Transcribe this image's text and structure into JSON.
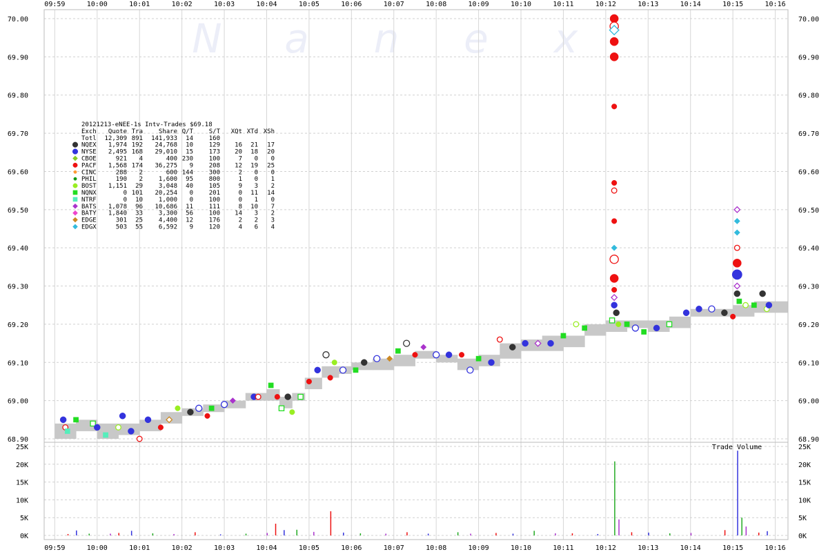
{
  "chart_data": {
    "type": "scatter",
    "watermark": [
      "N",
      "a",
      "n",
      "e",
      "x"
    ],
    "x_ticks": [
      "09:59",
      "10:00",
      "10:01",
      "10:02",
      "10:03",
      "10:04",
      "10:05",
      "10:06",
      "10:07",
      "10:08",
      "10:09",
      "10:10",
      "10:11",
      "10:12",
      "10:13",
      "10:14",
      "10:15",
      "10:16"
    ],
    "price_axis": {
      "ylim": [
        68.9,
        70.0
      ],
      "ticks": [
        "70.00",
        "69.90",
        "69.80",
        "69.70",
        "69.60",
        "69.50",
        "69.40",
        "69.30",
        "69.20",
        "69.10",
        "69.00",
        "68.90"
      ]
    },
    "volume_axis": {
      "label": "Trade Volume",
      "ylim": [
        0,
        25000
      ],
      "ticks": [
        "25K",
        "20K",
        "15K",
        "10K",
        "5K",
        "0K"
      ]
    },
    "legend": {
      "title": "20121213-eNEE-1s Intv-Trades $69.18",
      "columns": [
        "Exch",
        "Quote",
        "Tra",
        "Share",
        "Q/T",
        "S/T",
        "XQt",
        "XTd",
        "XSh"
      ],
      "total": {
        "exch": "Totl",
        "quote": "12,309",
        "tra": "891",
        "share": "141,933",
        "qt": "14",
        "st": "160",
        "xqt": "",
        "xtd": "",
        "xsh": ""
      },
      "rows": [
        {
          "exch": "NQEX",
          "quote": "1,974",
          "tra": "192",
          "share": "24,768",
          "qt": "10",
          "st": "129",
          "xqt": "16",
          "xtd": "21",
          "xsh": "17",
          "color": "#333333",
          "shape": "circle-big"
        },
        {
          "exch": "NYSE",
          "quote": "2,495",
          "tra": "168",
          "share": "29,010",
          "qt": "15",
          "st": "173",
          "xqt": "20",
          "xtd": "18",
          "xsh": "20",
          "color": "#3333dd",
          "shape": "circle-big"
        },
        {
          "exch": "CBOE",
          "quote": "921",
          "tra": "4",
          "share": "400",
          "qt": "230",
          "st": "100",
          "xqt": "7",
          "xtd": "0",
          "xsh": "0",
          "color": "#88cc22",
          "shape": "diamond"
        },
        {
          "exch": "PACF",
          "quote": "1,568",
          "tra": "174",
          "share": "36,275",
          "qt": "9",
          "st": "208",
          "xqt": "12",
          "xtd": "19",
          "xsh": "25",
          "color": "#ee1111",
          "shape": "circle"
        },
        {
          "exch": "CINC",
          "quote": "288",
          "tra": "2",
          "share": "600",
          "qt": "144",
          "st": "300",
          "xqt": "2",
          "xtd": "0",
          "xsh": "0",
          "color": "#ff9933",
          "shape": "circle-small"
        },
        {
          "exch": "PHIL",
          "quote": "190",
          "tra": "2",
          "share": "1,600",
          "qt": "95",
          "st": "800",
          "xqt": "1",
          "xtd": "0",
          "xsh": "1",
          "color": "#119911",
          "shape": "circle-small"
        },
        {
          "exch": "BOST",
          "quote": "1,151",
          "tra": "29",
          "share": "3,048",
          "qt": "40",
          "st": "105",
          "xqt": "9",
          "xtd": "3",
          "xsh": "2",
          "color": "#99ee22",
          "shape": "circle"
        },
        {
          "exch": "NQNX",
          "quote": "0",
          "tra": "101",
          "share": "20,254",
          "qt": "0",
          "st": "201",
          "xqt": "0",
          "xtd": "11",
          "xsh": "14",
          "color": "#22dd22",
          "shape": "square"
        },
        {
          "exch": "NTRF",
          "quote": "0",
          "tra": "10",
          "share": "1,000",
          "qt": "0",
          "st": "100",
          "xqt": "0",
          "xtd": "1",
          "xsh": "0",
          "color": "#55eebb",
          "shape": "square"
        },
        {
          "exch": "BATS",
          "quote": "1,078",
          "tra": "96",
          "share": "10,686",
          "qt": "11",
          "st": "111",
          "xqt": "8",
          "xtd": "10",
          "xsh": "7",
          "color": "#aa33cc",
          "shape": "diamond"
        },
        {
          "exch": "BATY",
          "quote": "1,840",
          "tra": "33",
          "share": "3,300",
          "qt": "56",
          "st": "100",
          "xqt": "14",
          "xtd": "3",
          "xsh": "2",
          "color": "#ee44cc",
          "shape": "diamond"
        },
        {
          "exch": "EDGE",
          "quote": "301",
          "tra": "25",
          "share": "4,400",
          "qt": "12",
          "st": "176",
          "xqt": "2",
          "xtd": "2",
          "xsh": "3",
          "color": "#cc8822",
          "shape": "diamond"
        },
        {
          "exch": "EDGX",
          "quote": "503",
          "tra": "55",
          "share": "6,592",
          "qt": "9",
          "st": "120",
          "xqt": "4",
          "xtd": "6",
          "xsh": "4",
          "color": "#33bbdd",
          "shape": "diamond"
        }
      ]
    },
    "nbbo_band": [
      {
        "t": 59.0,
        "lo": 68.9,
        "hi": 68.94
      },
      {
        "t": 59.5,
        "lo": 68.92,
        "hi": 68.95
      },
      {
        "t": 60.0,
        "lo": 68.9,
        "hi": 68.94
      },
      {
        "t": 60.5,
        "lo": 68.91,
        "hi": 68.94
      },
      {
        "t": 61.0,
        "lo": 68.92,
        "hi": 68.95
      },
      {
        "t": 61.5,
        "lo": 68.94,
        "hi": 68.97
      },
      {
        "t": 62.0,
        "lo": 68.96,
        "hi": 68.98
      },
      {
        "t": 62.5,
        "lo": 68.97,
        "hi": 68.99
      },
      {
        "t": 63.0,
        "lo": 68.98,
        "hi": 69.0
      },
      {
        "t": 63.5,
        "lo": 69.0,
        "hi": 69.02
      },
      {
        "t": 64.0,
        "lo": 69.0,
        "hi": 69.03
      },
      {
        "t": 64.3,
        "lo": 68.98,
        "hi": 69.01
      },
      {
        "t": 64.6,
        "lo": 69.0,
        "hi": 69.02
      },
      {
        "t": 64.9,
        "lo": 69.03,
        "hi": 69.06
      },
      {
        "t": 65.3,
        "lo": 69.06,
        "hi": 69.09
      },
      {
        "t": 65.7,
        "lo": 69.07,
        "hi": 69.09
      },
      {
        "t": 66.0,
        "lo": 69.08,
        "hi": 69.1
      },
      {
        "t": 66.5,
        "lo": 69.08,
        "hi": 69.11
      },
      {
        "t": 67.0,
        "lo": 69.09,
        "hi": 69.12
      },
      {
        "t": 67.5,
        "lo": 69.11,
        "hi": 69.13
      },
      {
        "t": 68.0,
        "lo": 69.1,
        "hi": 69.12
      },
      {
        "t": 68.5,
        "lo": 69.08,
        "hi": 69.11
      },
      {
        "t": 69.0,
        "lo": 69.09,
        "hi": 69.12
      },
      {
        "t": 69.5,
        "lo": 69.11,
        "hi": 69.15
      },
      {
        "t": 70.0,
        "lo": 69.13,
        "hi": 69.16
      },
      {
        "t": 70.5,
        "lo": 69.13,
        "hi": 69.17
      },
      {
        "t": 71.0,
        "lo": 69.14,
        "hi": 69.17
      },
      {
        "t": 71.5,
        "lo": 69.17,
        "hi": 69.2
      },
      {
        "t": 72.0,
        "lo": 69.18,
        "hi": 69.21
      },
      {
        "t": 72.5,
        "lo": 69.19,
        "hi": 69.21
      },
      {
        "t": 73.0,
        "lo": 69.18,
        "hi": 69.21
      },
      {
        "t": 73.5,
        "lo": 69.19,
        "hi": 69.22
      },
      {
        "t": 74.0,
        "lo": 69.22,
        "hi": 69.24
      },
      {
        "t": 74.5,
        "lo": 69.22,
        "hi": 69.24
      },
      {
        "t": 75.0,
        "lo": 69.22,
        "hi": 69.25
      },
      {
        "t": 75.5,
        "lo": 69.23,
        "hi": 69.26
      },
      {
        "t": 75.9,
        "lo": 69.23,
        "hi": 69.26
      }
    ],
    "trades": [
      {
        "t": 59.2,
        "p": 68.95,
        "e": "NYSE"
      },
      {
        "t": 59.25,
        "p": 68.93,
        "e": "PACF"
      },
      {
        "t": 59.3,
        "p": 68.92,
        "e": "NTRF"
      },
      {
        "t": 59.5,
        "p": 68.95,
        "e": "NQNX"
      },
      {
        "t": 59.9,
        "p": 68.94,
        "e": "NQNX"
      },
      {
        "t": 60.0,
        "p": 68.93,
        "e": "NYSE"
      },
      {
        "t": 60.2,
        "p": 68.91,
        "e": "NTRF"
      },
      {
        "t": 60.5,
        "p": 68.93,
        "e": "BOST"
      },
      {
        "t": 60.6,
        "p": 68.96,
        "e": "NYSE"
      },
      {
        "t": 60.8,
        "p": 68.92,
        "e": "NYSE"
      },
      {
        "t": 61.0,
        "p": 68.9,
        "e": "PACF"
      },
      {
        "t": 61.2,
        "p": 68.95,
        "e": "NYSE"
      },
      {
        "t": 61.5,
        "p": 68.93,
        "e": "PACF"
      },
      {
        "t": 61.7,
        "p": 68.95,
        "e": "EDGE"
      },
      {
        "t": 61.9,
        "p": 68.98,
        "e": "BOST"
      },
      {
        "t": 62.2,
        "p": 68.97,
        "e": "NQEX"
      },
      {
        "t": 62.4,
        "p": 68.98,
        "e": "NYSE"
      },
      {
        "t": 62.6,
        "p": 68.96,
        "e": "PACF"
      },
      {
        "t": 62.7,
        "p": 68.98,
        "e": "NQNX"
      },
      {
        "t": 63.0,
        "p": 68.99,
        "e": "NYSE"
      },
      {
        "t": 63.2,
        "p": 69.0,
        "e": "BATS"
      },
      {
        "t": 63.7,
        "p": 69.01,
        "e": "NYSE"
      },
      {
        "t": 63.8,
        "p": 69.01,
        "e": "PACF"
      },
      {
        "t": 64.1,
        "p": 69.04,
        "e": "NQNX"
      },
      {
        "t": 64.25,
        "p": 69.01,
        "e": "PACF"
      },
      {
        "t": 64.35,
        "p": 68.98,
        "e": "NQNX"
      },
      {
        "t": 64.5,
        "p": 69.01,
        "e": "NQEX"
      },
      {
        "t": 64.6,
        "p": 68.97,
        "e": "BOST"
      },
      {
        "t": 64.8,
        "p": 69.01,
        "e": "NQNX"
      },
      {
        "t": 65.0,
        "p": 69.05,
        "e": "PACF"
      },
      {
        "t": 65.2,
        "p": 69.08,
        "e": "NYSE"
      },
      {
        "t": 65.4,
        "p": 69.12,
        "e": "NQEX"
      },
      {
        "t": 65.5,
        "p": 69.06,
        "e": "PACF"
      },
      {
        "t": 65.6,
        "p": 69.1,
        "e": "BOST"
      },
      {
        "t": 65.8,
        "p": 69.08,
        "e": "NYSE"
      },
      {
        "t": 66.1,
        "p": 69.08,
        "e": "NQNX"
      },
      {
        "t": 66.3,
        "p": 69.1,
        "e": "NQEX"
      },
      {
        "t": 66.6,
        "p": 69.11,
        "e": "NYSE"
      },
      {
        "t": 66.9,
        "p": 69.11,
        "e": "EDGE"
      },
      {
        "t": 67.1,
        "p": 69.13,
        "e": "NQNX"
      },
      {
        "t": 67.3,
        "p": 69.15,
        "e": "NQEX"
      },
      {
        "t": 67.5,
        "p": 69.12,
        "e": "PACF"
      },
      {
        "t": 67.7,
        "p": 69.14,
        "e": "BATS"
      },
      {
        "t": 68.0,
        "p": 69.12,
        "e": "NYSE"
      },
      {
        "t": 68.3,
        "p": 69.12,
        "e": "NYSE"
      },
      {
        "t": 68.6,
        "p": 69.12,
        "e": "PACF"
      },
      {
        "t": 68.8,
        "p": 69.08,
        "e": "NYSE"
      },
      {
        "t": 69.0,
        "p": 69.11,
        "e": "NQNX"
      },
      {
        "t": 69.3,
        "p": 69.1,
        "e": "NYSE"
      },
      {
        "t": 69.5,
        "p": 69.16,
        "e": "PACF"
      },
      {
        "t": 69.8,
        "p": 69.14,
        "e": "NQEX"
      },
      {
        "t": 70.1,
        "p": 69.15,
        "e": "NYSE"
      },
      {
        "t": 70.4,
        "p": 69.15,
        "e": "BATS"
      },
      {
        "t": 70.7,
        "p": 69.15,
        "e": "NYSE"
      },
      {
        "t": 71.0,
        "p": 69.17,
        "e": "NQNX"
      },
      {
        "t": 71.3,
        "p": 69.2,
        "e": "BOST"
      },
      {
        "t": 71.5,
        "p": 69.19,
        "e": "NQNX"
      },
      {
        "t": 72.2,
        "p": 70.0,
        "e": "PACF"
      },
      {
        "t": 72.2,
        "p": 69.98,
        "e": "PACF"
      },
      {
        "t": 72.2,
        "p": 69.94,
        "e": "PACF"
      },
      {
        "t": 72.2,
        "p": 69.9,
        "e": "PACF"
      },
      {
        "t": 72.2,
        "p": 69.97,
        "e": "EDGX"
      },
      {
        "t": 72.2,
        "p": 69.77,
        "e": "PACF"
      },
      {
        "t": 72.2,
        "p": 69.57,
        "e": "PACF"
      },
      {
        "t": 72.2,
        "p": 69.55,
        "e": "PACF"
      },
      {
        "t": 72.2,
        "p": 69.47,
        "e": "PACF"
      },
      {
        "t": 72.2,
        "p": 69.4,
        "e": "EDGX"
      },
      {
        "t": 72.2,
        "p": 69.37,
        "e": "PACF"
      },
      {
        "t": 72.2,
        "p": 69.32,
        "e": "PACF"
      },
      {
        "t": 72.2,
        "p": 69.29,
        "e": "PACF"
      },
      {
        "t": 72.2,
        "p": 69.27,
        "e": "BATS"
      },
      {
        "t": 72.2,
        "p": 69.25,
        "e": "NYSE"
      },
      {
        "t": 72.25,
        "p": 69.23,
        "e": "NQEX"
      },
      {
        "t": 72.15,
        "p": 69.21,
        "e": "NQNX"
      },
      {
        "t": 72.3,
        "p": 69.2,
        "e": "BOST"
      },
      {
        "t": 72.5,
        "p": 69.2,
        "e": "NQNX"
      },
      {
        "t": 72.7,
        "p": 69.19,
        "e": "NYSE"
      },
      {
        "t": 72.9,
        "p": 69.18,
        "e": "NQNX"
      },
      {
        "t": 73.2,
        "p": 69.19,
        "e": "NYSE"
      },
      {
        "t": 73.5,
        "p": 69.2,
        "e": "NQNX"
      },
      {
        "t": 73.9,
        "p": 69.23,
        "e": "NYSE"
      },
      {
        "t": 74.2,
        "p": 69.24,
        "e": "NYSE"
      },
      {
        "t": 74.5,
        "p": 69.24,
        "e": "NYSE"
      },
      {
        "t": 74.8,
        "p": 69.23,
        "e": "NQEX"
      },
      {
        "t": 75.0,
        "p": 69.22,
        "e": "PACF"
      },
      {
        "t": 75.1,
        "p": 69.5,
        "e": "BATS"
      },
      {
        "t": 75.1,
        "p": 69.47,
        "e": "EDGX"
      },
      {
        "t": 75.1,
        "p": 69.44,
        "e": "EDGX"
      },
      {
        "t": 75.1,
        "p": 69.4,
        "e": "PACF"
      },
      {
        "t": 75.1,
        "p": 69.36,
        "e": "PACF"
      },
      {
        "t": 75.1,
        "p": 69.33,
        "e": "NYSE"
      },
      {
        "t": 75.1,
        "p": 69.3,
        "e": "BATS"
      },
      {
        "t": 75.1,
        "p": 69.28,
        "e": "NQEX"
      },
      {
        "t": 75.15,
        "p": 69.26,
        "e": "NQNX"
      },
      {
        "t": 75.3,
        "p": 69.25,
        "e": "BOST"
      },
      {
        "t": 75.5,
        "p": 69.25,
        "e": "NQNX"
      },
      {
        "t": 75.7,
        "p": 69.28,
        "e": "NQEX"
      },
      {
        "t": 75.8,
        "p": 69.24,
        "e": "BOST"
      },
      {
        "t": 75.85,
        "p": 69.25,
        "e": "NYSE"
      }
    ],
    "volume": [
      {
        "t": 59.3,
        "v": 400
      },
      {
        "t": 59.5,
        "v": 1400
      },
      {
        "t": 59.8,
        "v": 500
      },
      {
        "t": 60.3,
        "v": 500
      },
      {
        "t": 60.5,
        "v": 700
      },
      {
        "t": 60.8,
        "v": 1300
      },
      {
        "t": 61.3,
        "v": 600
      },
      {
        "t": 61.8,
        "v": 400
      },
      {
        "t": 62.3,
        "v": 900
      },
      {
        "t": 62.9,
        "v": 300
      },
      {
        "t": 63.5,
        "v": 500
      },
      {
        "t": 64.0,
        "v": 700
      },
      {
        "t": 64.2,
        "v": 3300
      },
      {
        "t": 64.4,
        "v": 1500
      },
      {
        "t": 64.7,
        "v": 1600
      },
      {
        "t": 65.1,
        "v": 1000
      },
      {
        "t": 65.5,
        "v": 6800
      },
      {
        "t": 65.8,
        "v": 800
      },
      {
        "t": 66.2,
        "v": 600
      },
      {
        "t": 66.8,
        "v": 500
      },
      {
        "t": 67.3,
        "v": 900
      },
      {
        "t": 67.8,
        "v": 500
      },
      {
        "t": 68.5,
        "v": 900
      },
      {
        "t": 68.8,
        "v": 500
      },
      {
        "t": 69.4,
        "v": 700
      },
      {
        "t": 69.8,
        "v": 500
      },
      {
        "t": 70.3,
        "v": 1300
      },
      {
        "t": 70.8,
        "v": 600
      },
      {
        "t": 71.2,
        "v": 600
      },
      {
        "t": 71.8,
        "v": 400
      },
      {
        "t": 72.2,
        "v": 20800
      },
      {
        "t": 72.3,
        "v": 4500
      },
      {
        "t": 72.6,
        "v": 900
      },
      {
        "t": 73.0,
        "v": 800
      },
      {
        "t": 73.5,
        "v": 600
      },
      {
        "t": 74.0,
        "v": 700
      },
      {
        "t": 74.8,
        "v": 1500
      },
      {
        "t": 75.1,
        "v": 23800
      },
      {
        "t": 75.2,
        "v": 5000
      },
      {
        "t": 75.3,
        "v": 2500
      },
      {
        "t": 75.6,
        "v": 800
      },
      {
        "t": 75.8,
        "v": 1200
      }
    ]
  }
}
